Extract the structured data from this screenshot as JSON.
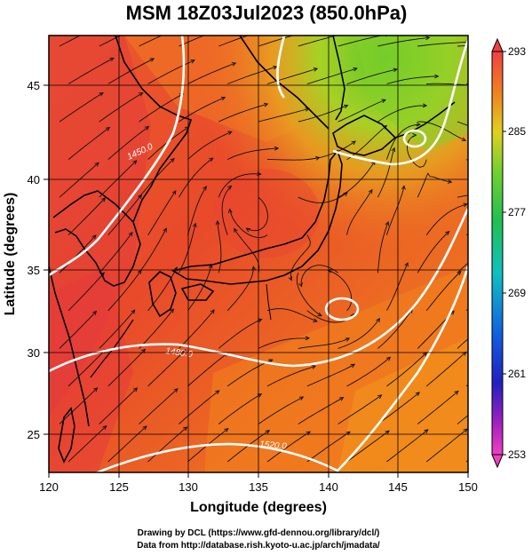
{
  "title": "MSM 18Z03Jul2023 (850.0hPa)",
  "xlabel": "Longitude (degrees)",
  "ylabel": "Latitude  (degrees)",
  "x_ticks": [
    "120",
    "125",
    "130",
    "135",
    "140",
    "145",
    "150"
  ],
  "y_ticks": [
    "25",
    "30",
    "35",
    "40",
    "45"
  ],
  "colorbar": {
    "ticks": [
      "293",
      "285",
      "277",
      "269",
      "261",
      "253"
    ],
    "min": 253,
    "max": 293
  },
  "contour_labels": [
    "1450.0",
    "1480.0",
    "1520.0"
  ],
  "credits": {
    "line1": "Drawing by DCL (https://www.gfd-dennou.org/library/dcl/)",
    "line2": "Data from http://database.rish.kyoto-u.ac.jp/arch/jmadata/"
  },
  "colors": {
    "warm": "#e8442c",
    "hot": "#e03c3c",
    "orange": "#f07a24",
    "yellow_green": "#d8d020",
    "green": "#7ad02a",
    "contour": "#ffffff"
  }
}
